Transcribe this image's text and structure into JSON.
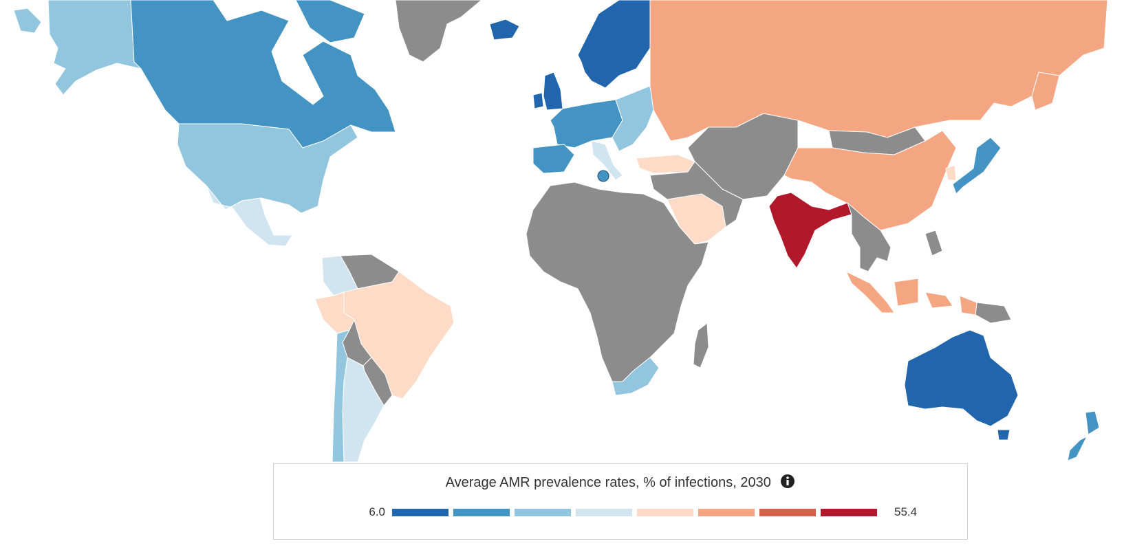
{
  "legend": {
    "title": "Average AMR prevalence rates, % of infections, 2030",
    "min_label": "6.0",
    "max_label": "55.4",
    "info_icon": "info-circle-icon",
    "scale_colors": [
      "#2166ac",
      "#4393c3",
      "#92c5de",
      "#d1e5f0",
      "#fddbc7",
      "#f4a582",
      "#d6604d",
      "#b2182b"
    ]
  },
  "map": {
    "no_data_color": "#8c8c8c",
    "regions": [
      {
        "name": "alaska",
        "bin": 2
      },
      {
        "name": "canada",
        "bin": 1
      },
      {
        "name": "united-states",
        "bin": 2
      },
      {
        "name": "mexico",
        "bin": 3
      },
      {
        "name": "greenland",
        "bin": null
      },
      {
        "name": "iceland",
        "bin": 0
      },
      {
        "name": "scandinavia",
        "bin": 0
      },
      {
        "name": "uk",
        "bin": 0
      },
      {
        "name": "western-europe",
        "bin": 1
      },
      {
        "name": "iberia",
        "bin": 1
      },
      {
        "name": "italy",
        "bin": 3
      },
      {
        "name": "eastern-europe",
        "bin": 2
      },
      {
        "name": "turkey",
        "bin": 4
      },
      {
        "name": "russia",
        "bin": 5
      },
      {
        "name": "central-asia",
        "bin": null
      },
      {
        "name": "mongolia",
        "bin": null
      },
      {
        "name": "china",
        "bin": 5
      },
      {
        "name": "korea",
        "bin": 4
      },
      {
        "name": "japan",
        "bin": 1
      },
      {
        "name": "india",
        "bin": 7
      },
      {
        "name": "saudi-arabia",
        "bin": 4
      },
      {
        "name": "middle-east",
        "bin": null
      },
      {
        "name": "southeast-asia",
        "bin": null
      },
      {
        "name": "indonesia",
        "bin": 5
      },
      {
        "name": "australia",
        "bin": 0
      },
      {
        "name": "new-zealand",
        "bin": 1
      },
      {
        "name": "africa",
        "bin": null
      },
      {
        "name": "south-africa",
        "bin": 2
      },
      {
        "name": "madagascar",
        "bin": null
      },
      {
        "name": "colombia",
        "bin": 3
      },
      {
        "name": "brazil",
        "bin": 4
      },
      {
        "name": "peru",
        "bin": 4
      },
      {
        "name": "bolivia",
        "bin": null
      },
      {
        "name": "argentina",
        "bin": 3
      },
      {
        "name": "chile",
        "bin": 2
      }
    ]
  }
}
